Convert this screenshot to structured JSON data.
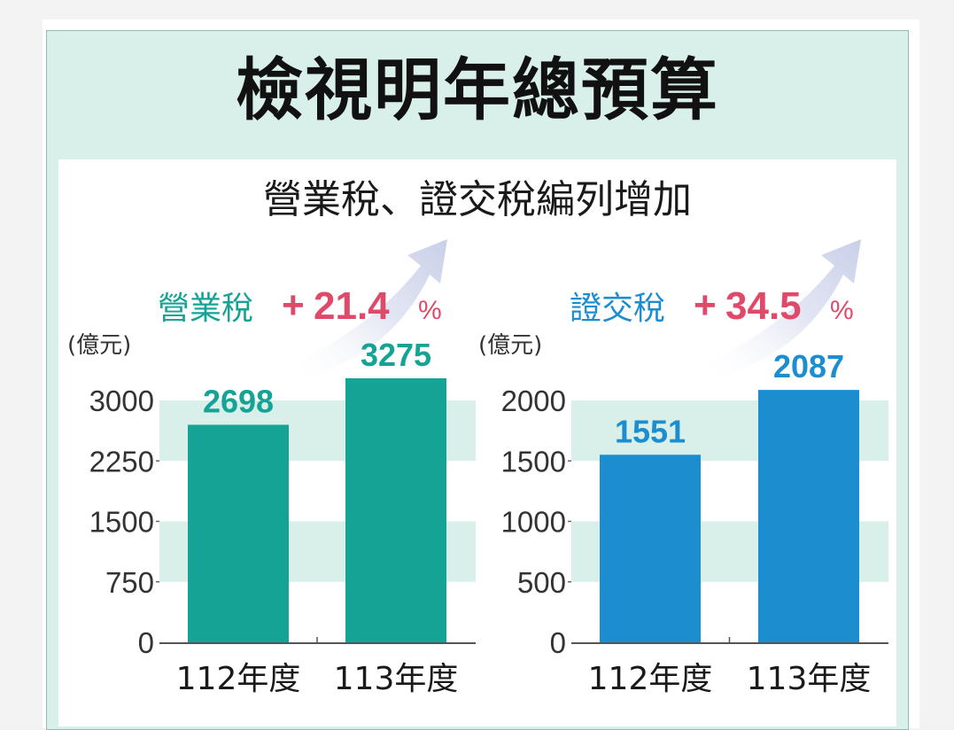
{
  "title": "檢視明年總預算",
  "subtitle": "營業稅、證交稅編列增加",
  "colors": {
    "frame": "#d8efea",
    "band": "#d8efea",
    "teal": "#14a394",
    "blue": "#1c8ed0",
    "pink": "#e04a6a"
  },
  "chart_data": [
    {
      "type": "bar",
      "series_name": "營業稅",
      "change_sign": "+",
      "change_value": "21.4",
      "change_unit": "%",
      "unit": "(億元)",
      "categories": [
        "112年度",
        "113年度"
      ],
      "values": [
        2698,
        3275
      ],
      "value_labels": [
        "2698",
        "3275"
      ],
      "yticks": [
        "0",
        "750",
        "1500",
        "2250",
        "3000"
      ],
      "ytick_values": [
        0,
        750,
        1500,
        2250,
        3000
      ],
      "ylim": [
        0,
        3000
      ],
      "color": "#14a394",
      "name_color": "#14a394"
    },
    {
      "type": "bar",
      "series_name": "證交稅",
      "change_sign": "+",
      "change_value": "34.5",
      "change_unit": "%",
      "unit": "(億元)",
      "categories": [
        "112年度",
        "113年度"
      ],
      "values": [
        1551,
        2087
      ],
      "value_labels": [
        "1551",
        "2087"
      ],
      "yticks": [
        "0",
        "500",
        "1000",
        "1500",
        "2000"
      ],
      "ytick_values": [
        0,
        500,
        1000,
        1500,
        2000
      ],
      "ylim": [
        0,
        2000
      ],
      "color": "#1c8ed0",
      "name_color": "#1c8ed0"
    }
  ]
}
